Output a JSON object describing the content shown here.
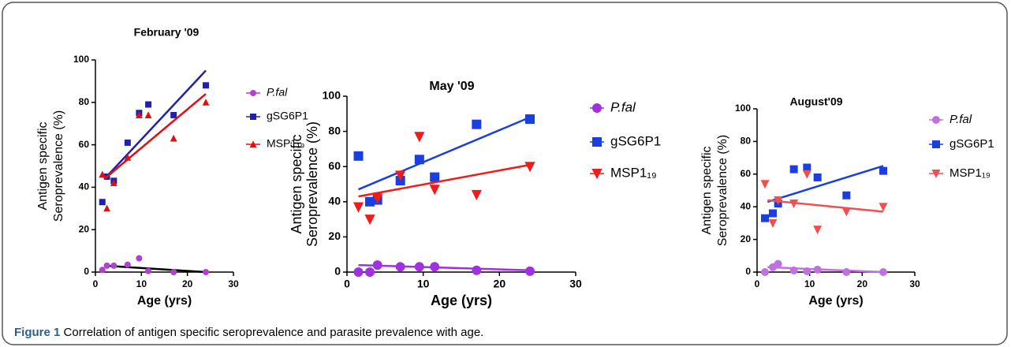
{
  "chart_data": [
    {
      "type": "scatter",
      "title": "February '09",
      "xlabel": "Age (yrs)",
      "ylabel": [
        "Antigen specific",
        "Seroprevalence (%)"
      ],
      "xlim": [
        0,
        30
      ],
      "ylim": [
        0,
        100
      ],
      "xticks": [
        0,
        10,
        20,
        30
      ],
      "yticks": [
        0,
        20,
        40,
        60,
        80,
        100
      ],
      "series": [
        {
          "name": "P.fal",
          "italic": true,
          "marker": "circle",
          "color": "#b040d0",
          "fit_color": "#000000",
          "x": [
            1.5,
            2.5,
            4,
            7,
            9.5,
            11.5,
            17,
            24
          ],
          "values": [
            1,
            3,
            3,
            3.5,
            6.5,
            0.5,
            0,
            0
          ],
          "fit": {
            "x": [
              2,
              24
            ],
            "values": [
              3,
              0
            ]
          }
        },
        {
          "name": "gSG6P1",
          "italic": false,
          "marker": "square",
          "color": "#2020b0",
          "fit_color": "#2020b0",
          "x": [
            1.5,
            2.5,
            4,
            7,
            9.5,
            11.5,
            17,
            24
          ],
          "values": [
            33,
            45,
            43,
            61,
            75,
            79,
            74,
            88
          ],
          "fit": {
            "x": [
              2,
              24
            ],
            "values": [
              44,
              95
            ]
          }
        },
        {
          "name": "MSP1₁₉",
          "italic": false,
          "marker": "triangle-up",
          "color": "#e01010",
          "fit_color": "#e01010",
          "x": [
            1.5,
            2.5,
            4,
            7,
            9.5,
            11.5,
            17,
            24
          ],
          "values": [
            46,
            30,
            42,
            54,
            74,
            74,
            63,
            80
          ],
          "fit": {
            "x": [
              2,
              24
            ],
            "values": [
              44,
              84
            ]
          }
        }
      ]
    },
    {
      "type": "scatter",
      "title": "May '09",
      "xlabel": "Age (yrs)",
      "ylabel": [
        "Antigen specific",
        "Seroprevalence (%)"
      ],
      "xlim": [
        0,
        30
      ],
      "ylim": [
        0,
        100
      ],
      "xticks": [
        0,
        10,
        20,
        30
      ],
      "yticks": [
        0,
        20,
        40,
        60,
        80,
        100
      ],
      "series": [
        {
          "name": "P.fal",
          "italic": true,
          "marker": "circle",
          "color": "#a030e0",
          "fit_color": "#a030e0",
          "x": [
            1.5,
            3,
            4,
            7,
            9.5,
            11.5,
            17,
            24
          ],
          "values": [
            0,
            0,
            4,
            3,
            3,
            3,
            1,
            0.5
          ],
          "fit": {
            "x": [
              1.5,
              24
            ],
            "values": [
              4,
              1
            ]
          }
        },
        {
          "name": "gSG6P1",
          "italic": false,
          "marker": "square",
          "color": "#1a3ee0",
          "fit_color": "#1a3ee0",
          "x": [
            1.5,
            3,
            4,
            7,
            9.5,
            11.5,
            17,
            24
          ],
          "values": [
            66,
            40,
            41,
            52,
            64,
            54,
            84,
            87
          ],
          "fit": {
            "x": [
              1.5,
              24
            ],
            "values": [
              47,
              88
            ]
          }
        },
        {
          "name": "MSP1₁₉",
          "italic": false,
          "marker": "triangle-down",
          "color": "#ee1c1c",
          "fit_color": "#ee1c1c",
          "x": [
            1.5,
            3,
            4,
            7,
            9.5,
            11.5,
            17,
            24
          ],
          "values": [
            37,
            30,
            42,
            55,
            77,
            47,
            44,
            60
          ],
          "fit": {
            "x": [
              1.5,
              24
            ],
            "values": [
              43,
              61
            ]
          }
        }
      ]
    },
    {
      "type": "scatter",
      "title": "August'09",
      "xlabel": "Age (yrs)",
      "ylabel": [
        "Antigen specific",
        "Seroprevalence (%)"
      ],
      "xlim": [
        0,
        30
      ],
      "ylim": [
        0,
        100
      ],
      "xticks": [
        0,
        10,
        20,
        30
      ],
      "yticks": [
        0,
        20,
        40,
        60,
        80,
        100
      ],
      "series": [
        {
          "name": "P.fal",
          "italic": true,
          "marker": "circle",
          "color": "#c070e0",
          "fit_color": "#c070e0",
          "x": [
            1.5,
            3,
            4,
            7,
            9.5,
            11.5,
            17,
            24
          ],
          "values": [
            0,
            3,
            5,
            1,
            0.5,
            1.5,
            0,
            0
          ],
          "fit": {
            "x": [
              2,
              24
            ],
            "values": [
              3,
              0
            ]
          }
        },
        {
          "name": "gSG6P1",
          "italic": false,
          "marker": "square",
          "color": "#1a3ee0",
          "fit_color": "#1a3ee0",
          "x": [
            1.5,
            3,
            4,
            7,
            9.5,
            11.5,
            17,
            24
          ],
          "values": [
            33,
            36,
            42,
            63,
            64,
            58,
            47,
            62
          ],
          "fit": {
            "x": [
              2,
              24
            ],
            "values": [
              43,
              65
            ]
          }
        },
        {
          "name": "MSP1₁₉",
          "italic": false,
          "marker": "triangle-down",
          "color": "#f05050",
          "fit_color": "#f05050",
          "x": [
            1.5,
            3,
            4,
            7,
            9.5,
            11.5,
            17,
            24
          ],
          "values": [
            54,
            30,
            44,
            42,
            60,
            26,
            37,
            40
          ],
          "fit": {
            "x": [
              2,
              24
            ],
            "values": [
              44,
              37
            ]
          }
        }
      ]
    }
  ],
  "caption": {
    "label": "Figure 1",
    "text": "Correlation of antigen specific seroprevalence and parasite prevalence with age."
  }
}
